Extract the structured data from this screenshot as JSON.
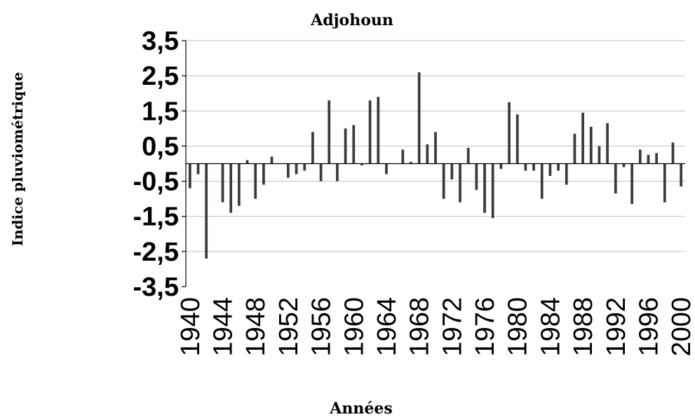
{
  "chart_data": {
    "type": "bar",
    "title": "Adjohoun",
    "xlabel": "Années",
    "ylabel": "Indice pluviométrique",
    "ylim": [
      -3.5,
      3.5
    ],
    "yticks": [
      "3,5",
      "2,5",
      "1,5",
      "0,5",
      "-0,5",
      "-1,5",
      "-2,5",
      "-3,5"
    ],
    "ytick_values": [
      3.5,
      2.5,
      1.5,
      0.5,
      -0.5,
      -1.5,
      -2.5,
      -3.5
    ],
    "xticks": [
      "1940",
      "1944",
      "1948",
      "1952",
      "1956",
      "1960",
      "1964",
      "1968",
      "1972",
      "1976",
      "1980",
      "1984",
      "1988",
      "1992",
      "1996",
      "2000"
    ],
    "grid": true,
    "bar_color": "#3a3a3a",
    "categories": [
      1940,
      1941,
      1942,
      1943,
      1944,
      1945,
      1946,
      1947,
      1948,
      1949,
      1950,
      1951,
      1952,
      1953,
      1954,
      1955,
      1956,
      1957,
      1958,
      1959,
      1960,
      1961,
      1962,
      1963,
      1964,
      1965,
      1966,
      1967,
      1968,
      1969,
      1970,
      1971,
      1972,
      1973,
      1974,
      1975,
      1976,
      1977,
      1978,
      1979,
      1980,
      1981,
      1982,
      1983,
      1984,
      1985,
      1986,
      1987,
      1988,
      1989,
      1990,
      1991,
      1992,
      1993,
      1994,
      1995,
      1996,
      1997,
      1998,
      1999,
      2000
    ],
    "values": [
      -0.7,
      -0.3,
      -2.7,
      0,
      -1.1,
      -1.4,
      -1.2,
      0.1,
      -1.0,
      -0.6,
      0.2,
      0,
      -0.4,
      -0.3,
      -0.2,
      0.9,
      -0.5,
      1.8,
      -0.5,
      1.0,
      1.1,
      -0.05,
      1.8,
      1.9,
      -0.3,
      0,
      0.4,
      0.05,
      2.6,
      0.55,
      0.9,
      -1.0,
      -0.45,
      -1.1,
      0.45,
      -0.75,
      -1.4,
      -1.55,
      -0.15,
      1.75,
      1.4,
      -0.2,
      -0.2,
      -1.0,
      -0.35,
      -0.2,
      -0.6,
      0.85,
      1.45,
      1.05,
      0.5,
      1.15,
      -0.85,
      -0.1,
      -1.15,
      0.4,
      0.25,
      0.3,
      -1.1,
      0.6,
      -0.65
    ]
  }
}
